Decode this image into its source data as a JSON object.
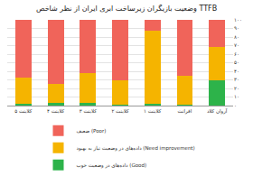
{
  "chart_data": {
    "type": "bar",
    "title": "وضعیت بازیگران زیرساخت ابری ایران از نظر شاخص TTFB",
    "categories": [
      "کلاینت ۵",
      "کلاینت ۴",
      "کلاینت ۳",
      "کلاینت ۲",
      "کلاینت ۱",
      "افرانت",
      "آروان کلاد"
    ],
    "stacked": true,
    "grid": true,
    "legend": "bottom",
    "series": [
      {
        "name": "داده‌های در وضعیت خوب (Good)",
        "color": "#2db34a",
        "values": [
          2,
          3,
          3,
          1,
          2,
          1,
          30
        ]
      },
      {
        "name": "داده‌های در وضعیت نیاز به بهبود (Need improvement)",
        "color": "#f5b400",
        "values": [
          31,
          22,
          35,
          29,
          85,
          34,
          38
        ]
      },
      {
        "name": "ضعیف (Poor)",
        "color": "#f0645a",
        "values": [
          67,
          75,
          62,
          70,
          13,
          65,
          32
        ]
      }
    ],
    "ylim": [
      0,
      100
    ],
    "yticks": [
      {
        "value": 0,
        "label": "۰"
      },
      {
        "value": 10,
        "label": "۱۰"
      },
      {
        "value": 20,
        "label": "۲۰"
      },
      {
        "value": 30,
        "label": "۳۰"
      },
      {
        "value": 40,
        "label": "۴۰"
      },
      {
        "value": 50,
        "label": "۵۰"
      },
      {
        "value": 60,
        "label": "۶۰"
      },
      {
        "value": 70,
        "label": "۷۰"
      },
      {
        "value": 80,
        "label": "۸۰"
      },
      {
        "value": 90,
        "label": "۹۰"
      },
      {
        "value": 100,
        "label": "۱۰۰"
      }
    ]
  }
}
